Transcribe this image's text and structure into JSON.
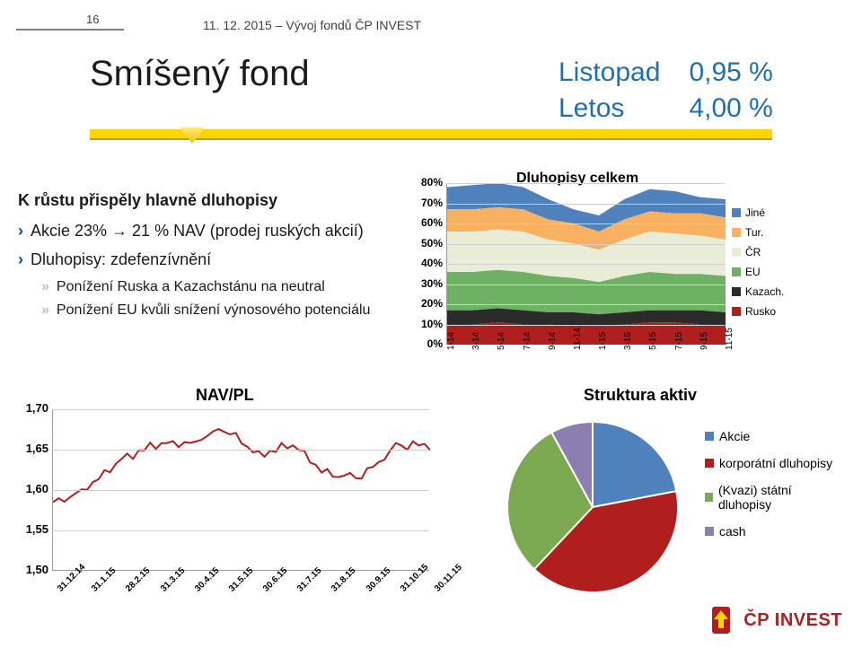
{
  "page_number": "16",
  "header_date": "11. 12. 2015 – Vývoj fondů ČP INVEST",
  "title": "Smíšený fond",
  "metrics": {
    "rows": [
      {
        "label": "Listopad",
        "value": "0,95 %"
      },
      {
        "label": "Letos",
        "value": "4,00 %"
      }
    ],
    "label_color": "#1f6fb0",
    "value_color": "#1f6fb0"
  },
  "bullets": {
    "lead": "K růstu přispěly hlavně dluhopisy",
    "level1": [
      "Akcie 23% → 21 % NAV (prodej ruských akcií)",
      "Dluhopisy: zdefenzívnění"
    ],
    "level2": [
      "Ponížení Ruska a Kazachstánu na neutral",
      "Ponížení EU kvůli snížení výnosového potenciálu"
    ]
  },
  "area_chart": {
    "title": "Dluhopisy celkem",
    "y_ticks": [
      "0%",
      "10%",
      "20%",
      "30%",
      "40%",
      "50%",
      "60%",
      "70%",
      "80%"
    ],
    "x_labels": [
      "1-14",
      "3-14",
      "5-14",
      "7-14",
      "9-14",
      "11-14",
      "1-15",
      "3-15",
      "5-15",
      "7-15",
      "9-15",
      "11-15"
    ],
    "series": [
      {
        "name": "Jiné",
        "color": "#4f81bd",
        "points": [
          78,
          79,
          80,
          78,
          72,
          67,
          64,
          72,
          77,
          76,
          73,
          72
        ]
      },
      {
        "name": "Tur.",
        "color": "#f7b160",
        "points": [
          67,
          67,
          68,
          67,
          62,
          60,
          56,
          62,
          66,
          65,
          65,
          63
        ]
      },
      {
        "name": "ČR",
        "color": "#e9edd8",
        "points": [
          56,
          56,
          57,
          56,
          52,
          50,
          47,
          52,
          56,
          55,
          54,
          52
        ]
      },
      {
        "name": "EU",
        "color": "#6eb165",
        "points": [
          36,
          36,
          37,
          36,
          34,
          33,
          31,
          34,
          36,
          35,
          35,
          34
        ]
      },
      {
        "name": "Kazach.",
        "color": "#2b2b2b",
        "points": [
          17,
          17,
          18,
          17,
          16,
          16,
          15,
          16,
          17,
          17,
          17,
          16
        ]
      },
      {
        "name": "Rusko",
        "color": "#b01e1e",
        "points": [
          10,
          10,
          11,
          10,
          10,
          9,
          9,
          10,
          11,
          11,
          10,
          10
        ]
      }
    ],
    "background": "#ffffff"
  },
  "line_chart": {
    "title": "NAV/PL",
    "y_ticks": [
      "1,50",
      "1,55",
      "1,60",
      "1,65",
      "1,70"
    ],
    "y_min": 1.5,
    "y_max": 1.7,
    "x_labels": [
      "31.12.14",
      "31.1.15",
      "28.2.15",
      "31.3.15",
      "30.4.15",
      "31.5.15",
      "30.6.15",
      "31.7.15",
      "31.8.15",
      "30.9.15",
      "31.10.15",
      "30.11.15"
    ],
    "line_color": "#b01e1e",
    "points": [
      1.585,
      1.6,
      1.64,
      1.655,
      1.66,
      1.675,
      1.645,
      1.655,
      1.62,
      1.615,
      1.655,
      1.655
    ]
  },
  "pie_chart": {
    "title": "Struktura aktiv",
    "slices": [
      {
        "name": "Akcie",
        "value": 22,
        "color": "#4f81bd"
      },
      {
        "name": "korporátní dluhopisy",
        "value": 40,
        "color": "#b01e1e"
      },
      {
        "name": "(Kvazi) státní dluhopisy",
        "value": 30,
        "color": "#7aa951"
      },
      {
        "name": "cash",
        "value": 8,
        "color": "#8b7fb0"
      }
    ]
  },
  "logo_text": "ČP INVEST"
}
